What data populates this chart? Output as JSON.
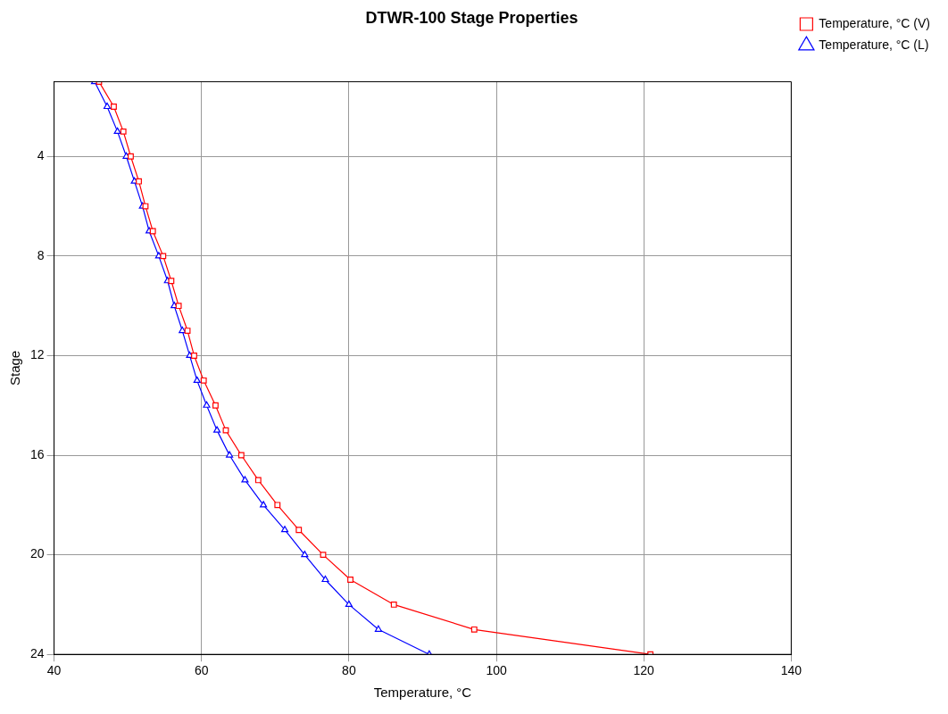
{
  "chart_data": {
    "type": "line",
    "title": "DTWR-100 Stage Properties",
    "xlabel": "Temperature, °C",
    "ylabel": "Stage",
    "xlim": [
      40,
      140
    ],
    "xticks": [
      40,
      60,
      80,
      100,
      120,
      140
    ],
    "ylim": [
      24,
      1
    ],
    "yticks": [
      4,
      8,
      12,
      16,
      20,
      24
    ],
    "grid": true,
    "legend": "top right",
    "line_style": "solid",
    "series": [
      {
        "name": "Temperature, °C (V)",
        "color": "#ff0000",
        "marker": "square",
        "x": [
          46.1,
          48.1,
          49.4,
          50.4,
          51.5,
          52.4,
          53.4,
          54.8,
          55.9,
          56.9,
          58.1,
          59.0,
          60.3,
          61.9,
          63.3,
          65.4,
          67.7,
          70.3,
          73.2,
          76.5,
          80.2,
          86.1,
          97.0,
          120.9
        ],
        "values": [
          1,
          2,
          3,
          4,
          5,
          6,
          7,
          8,
          9,
          10,
          11,
          12,
          13,
          14,
          15,
          16,
          17,
          18,
          19,
          20,
          21,
          22,
          23,
          24
        ]
      },
      {
        "name": "Temperature, °C (L)",
        "color": "#0000ff",
        "marker": "triangle",
        "x": [
          45.5,
          47.2,
          48.6,
          49.8,
          50.9,
          52.0,
          52.9,
          54.2,
          55.4,
          56.3,
          57.4,
          58.4,
          59.4,
          60.7,
          62.1,
          63.8,
          65.9,
          68.4,
          71.3,
          74.0,
          76.8,
          80.0,
          84.0,
          90.9
        ],
        "values": [
          1,
          2,
          3,
          4,
          5,
          6,
          7,
          8,
          9,
          10,
          11,
          12,
          13,
          14,
          15,
          16,
          17,
          18,
          19,
          20,
          21,
          22,
          23,
          24
        ]
      }
    ]
  }
}
